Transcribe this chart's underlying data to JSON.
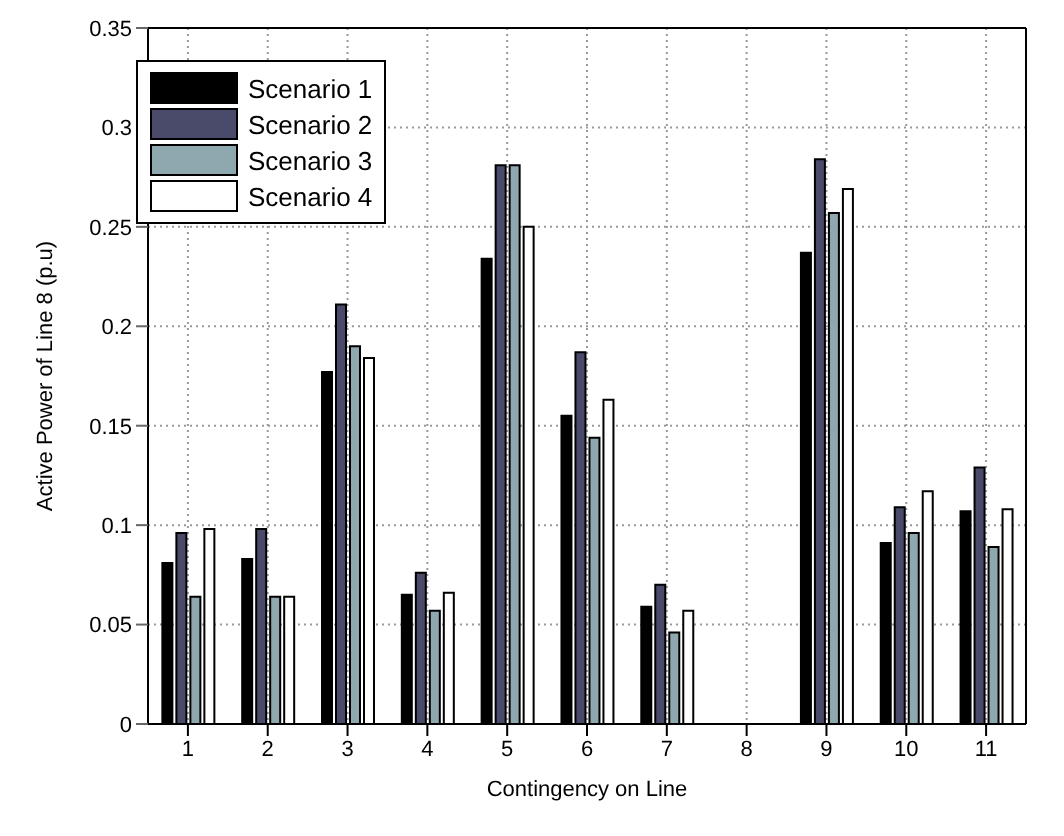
{
  "chart_data": {
    "type": "bar",
    "xlabel": "Contingency on Line",
    "ylabel": "Active Power of Line 8 (p.u)",
    "categories": [
      "1",
      "2",
      "3",
      "4",
      "5",
      "6",
      "7",
      "8",
      "9",
      "10",
      "11"
    ],
    "series": [
      {
        "name": "Scenario 1",
        "color": "#000000",
        "values": [
          0.081,
          0.083,
          0.177,
          0.065,
          0.234,
          0.155,
          0.059,
          0,
          0.237,
          0.091,
          0.107
        ]
      },
      {
        "name": "Scenario 2",
        "color": "#4a4a6a",
        "values": [
          0.096,
          0.098,
          0.211,
          0.076,
          0.281,
          0.187,
          0.07,
          0,
          0.284,
          0.109,
          0.129
        ]
      },
      {
        "name": "Scenario 3",
        "color": "#8fa8b0",
        "values": [
          0.064,
          0.064,
          0.19,
          0.057,
          0.281,
          0.144,
          0.046,
          0,
          0.257,
          0.096,
          0.089
        ]
      },
      {
        "name": "Scenario 4",
        "color": "#ffffff",
        "values": [
          0.098,
          0.064,
          0.184,
          0.066,
          0.25,
          0.163,
          0.057,
          0,
          0.269,
          0.117,
          0.108
        ]
      }
    ],
    "ylim": [
      0,
      0.35
    ],
    "yticks": [
      0,
      0.05,
      0.1,
      0.15,
      0.2,
      0.25,
      0.3,
      0.35
    ],
    "grid": true,
    "legend": "top left"
  }
}
